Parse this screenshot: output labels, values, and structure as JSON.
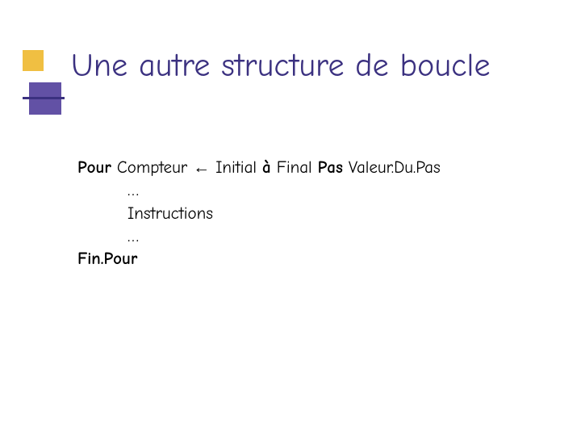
{
  "slide": {
    "title": "Une autre structure de boucle",
    "title_color": "#3b3180",
    "title_fontsize": 40,
    "decor": {
      "yellow_square_color": "#f0bf42",
      "purple_square_color": "#6251a5",
      "line_color": "#3b3180"
    },
    "body": {
      "fontsize": 21,
      "text_color": "#000000",
      "keywords": {
        "pour": "Pour",
        "a": "à",
        "pas": "Pas",
        "finpour": "Fin.Pour"
      },
      "tokens": {
        "compteur": "Compteur",
        "arrow": "←",
        "initial": "Initial",
        "final": "Final",
        "valeur": "Valeur.Du.Pas",
        "ellipsis1": "…",
        "instructions": "Instructions",
        "ellipsis2": "…"
      }
    },
    "background_color": "#ffffff"
  }
}
